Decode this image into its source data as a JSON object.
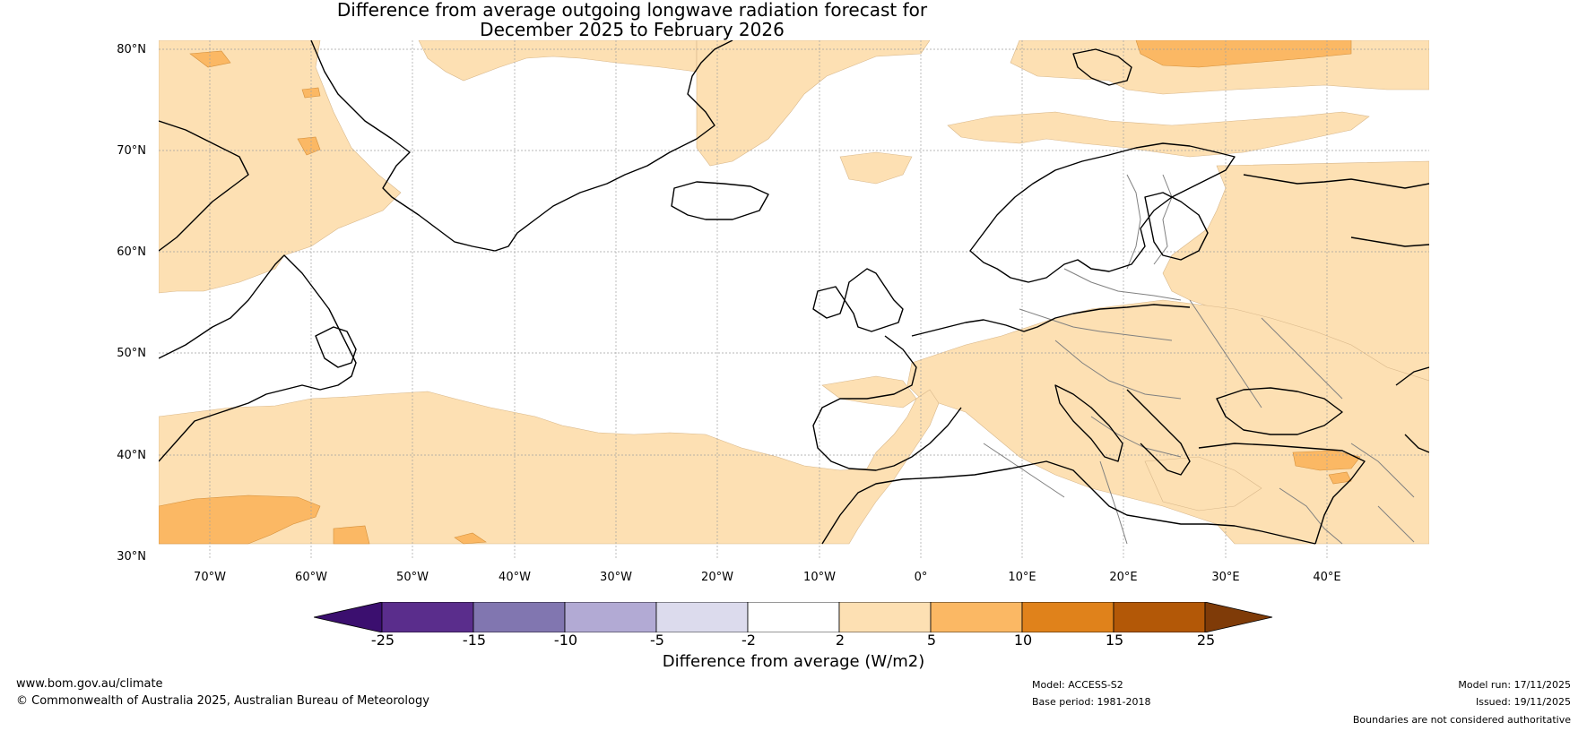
{
  "title_line1": "Difference from average outgoing longwave radiation forecast for",
  "title_line2": "December 2025 to February 2026",
  "lat_labels": [
    "80°N",
    "70°N",
    "60°N",
    "50°N",
    "40°N",
    "30°N"
  ],
  "lon_labels": [
    "70°W",
    "60°W",
    "50°W",
    "40°W",
    "30°W",
    "20°W",
    "10°W",
    "0°",
    "10°E",
    "20°E",
    "30°E",
    "40°E"
  ],
  "colorbar": {
    "labels": [
      "-25",
      "-15",
      "-10",
      "-5",
      "-2",
      "2",
      "5",
      "10",
      "15",
      "25"
    ],
    "title": "Difference from average (W/m2)",
    "colors": [
      "#3b0f6f",
      "#5a2d8c",
      "#8176b0",
      "#b2aad4",
      "#dcdbed",
      "#ffffff",
      "#fde0b3",
      "#fbb864",
      "#e0821b",
      "#b35807",
      "#7f3b08"
    ]
  },
  "footer": {
    "website": "www.bom.gov.au/climate",
    "copyright": "© Commonwealth of Australia 2025, Australian Bureau of Meteorology",
    "model": "Model: ACCESS-S2",
    "base_period": "Base period: 1981-2018",
    "model_run": "Model run: 17/11/2025",
    "issued": "Issued: 19/11/2025",
    "disclaimer": "Boundaries are not considered authoritative"
  },
  "colors": {
    "light_orange": "#fde0b3",
    "orange": "#fbb864",
    "coast": "#000000",
    "border": "#808080",
    "gridline": "#999999"
  }
}
